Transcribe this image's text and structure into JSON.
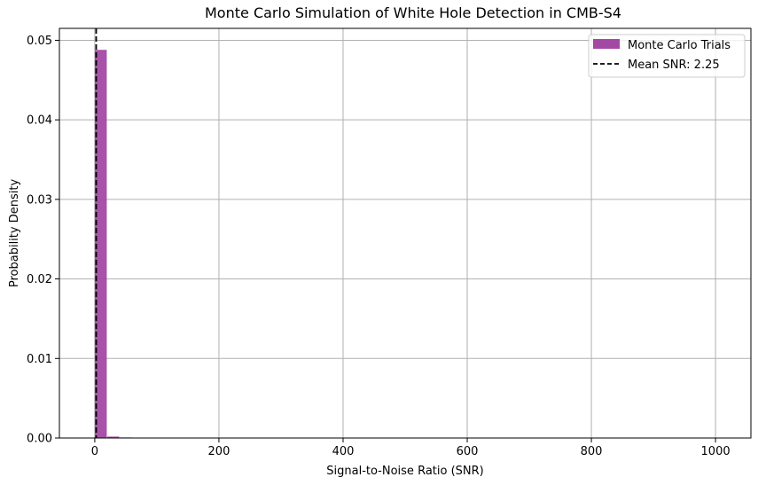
{
  "chart_data": {
    "type": "bar",
    "title": "Monte Carlo Simulation of White Hole Detection in CMB-S4",
    "xlabel": "Signal-to-Noise Ratio (SNR)",
    "ylabel": "Probability Density",
    "xlim": [
      -57,
      1057
    ],
    "ylim": [
      0,
      0.0515
    ],
    "xticks": [
      0,
      200,
      400,
      600,
      800,
      1000
    ],
    "xtick_labels": [
      "0",
      "200",
      "400",
      "600",
      "800",
      "1000"
    ],
    "yticks": [
      0,
      0.01,
      0.02,
      0.03,
      0.04,
      0.05
    ],
    "ytick_labels": [
      "0.00",
      "0.01",
      "0.02",
      "0.03",
      "0.04",
      "0.05"
    ],
    "grid": true,
    "legend_position": "top-right",
    "series": [
      {
        "name": "Monte Carlo Trials",
        "color": "#a349a4",
        "bins": [
          {
            "x0": 0,
            "x1": 20,
            "value": 0.0488
          },
          {
            "x0": 20,
            "x1": 40,
            "value": 0.00018
          },
          {
            "x0": 40,
            "x1": 60,
            "value": 7e-05
          },
          {
            "x0": 60,
            "x1": 80,
            "value": 5e-05
          },
          {
            "x0": 80,
            "x1": 100,
            "value": 4e-05
          }
        ]
      }
    ],
    "reference_line": {
      "name": "Mean SNR: 2.25",
      "x": 2.25,
      "color": "#000000",
      "style": "dashed"
    }
  }
}
